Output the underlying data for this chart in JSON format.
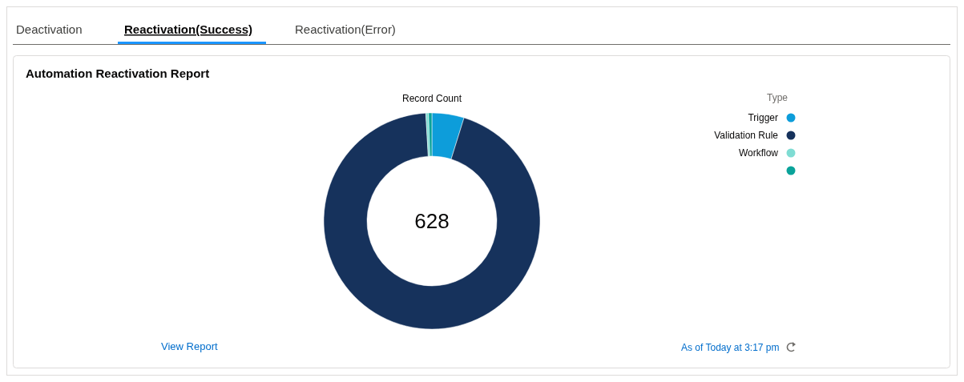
{
  "chart_data": {
    "type": "donut",
    "title": "Automation Reactivation Report",
    "subtitle": "Record Count",
    "legend_title": "Type",
    "categories": [
      "Trigger",
      "Validation Rule",
      "Workflow",
      null
    ],
    "values": [
      4.8,
      94.3,
      0.4,
      0.5
    ],
    "colors": [
      "#0d9dda",
      "#16325c",
      "#7fdcd3",
      "#0aa39a"
    ],
    "legend": "right",
    "annotations": [
      "Deactivation",
      "Reactivation(Success)",
      "Reactivation(Error)",
      "628",
      "View Report",
      "As of Today at 3:17 pm"
    ]
  }
}
